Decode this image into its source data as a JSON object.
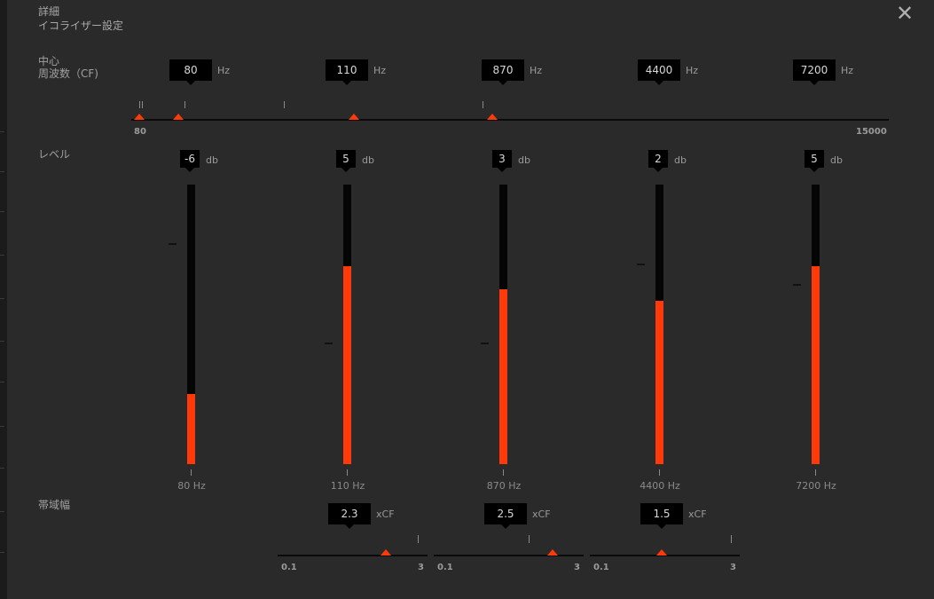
{
  "header": {
    "title_line1": "詳細",
    "title_line2": "イコライザー設定",
    "close_glyph": "✕"
  },
  "colors": {
    "accent": "#ff3a0a",
    "background": "#2a2a2a",
    "track": "#0a0a0a"
  },
  "cf_section": {
    "label_line1": "中心",
    "label_line2": "周波数（CF)",
    "unit": "Hz",
    "values": [
      "80",
      "110",
      "870",
      "4400",
      "7200"
    ],
    "axis_min": "80",
    "axis_max": "15000"
  },
  "level_section": {
    "label": "レベル",
    "unit": "db",
    "range": [
      -12,
      12
    ],
    "bands": [
      {
        "value": "-6",
        "level": -6,
        "band_label": "80 Hz"
      },
      {
        "value": "5",
        "level": 5,
        "band_label": "110 Hz"
      },
      {
        "value": "3",
        "level": 3,
        "band_label": "870 Hz"
      },
      {
        "value": "2",
        "level": 2,
        "band_label": "4400 Hz"
      },
      {
        "value": "5",
        "level": 5,
        "band_label": "7200 Hz"
      }
    ]
  },
  "bandwidth_section": {
    "label": "帯域幅",
    "unit": "xCF",
    "sliders": [
      {
        "value": "2.3",
        "min": "0.1",
        "max": "3",
        "fraction": 0.72
      },
      {
        "value": "2.5",
        "min": "0.1",
        "max": "3",
        "fraction": 0.79
      },
      {
        "value": "1.5",
        "min": "0.1",
        "max": "3",
        "fraction": 0.48
      }
    ]
  }
}
